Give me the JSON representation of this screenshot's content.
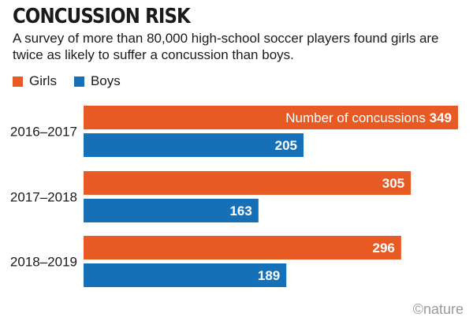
{
  "title": "CONCUSSION RISK",
  "subtitle": "A survey of more than 80,000 high-school soccer players found girls are twice as likely to suffer a concussion than boys.",
  "credit": "©nature",
  "colors": {
    "girls": "#e85a24",
    "boys": "#1570b8"
  },
  "chart_data": {
    "type": "bar",
    "orientation": "horizontal",
    "title": "CONCUSSION RISK",
    "categories": [
      "2016–2017",
      "2017–2018",
      "2018–2019"
    ],
    "series": [
      {
        "name": "Girls",
        "values": [
          349,
          305,
          296
        ]
      },
      {
        "name": "Boys",
        "values": [
          205,
          163,
          189
        ]
      }
    ],
    "annotation": "Number of concussions",
    "xlim": [
      0,
      349
    ],
    "legend": "top-left"
  }
}
